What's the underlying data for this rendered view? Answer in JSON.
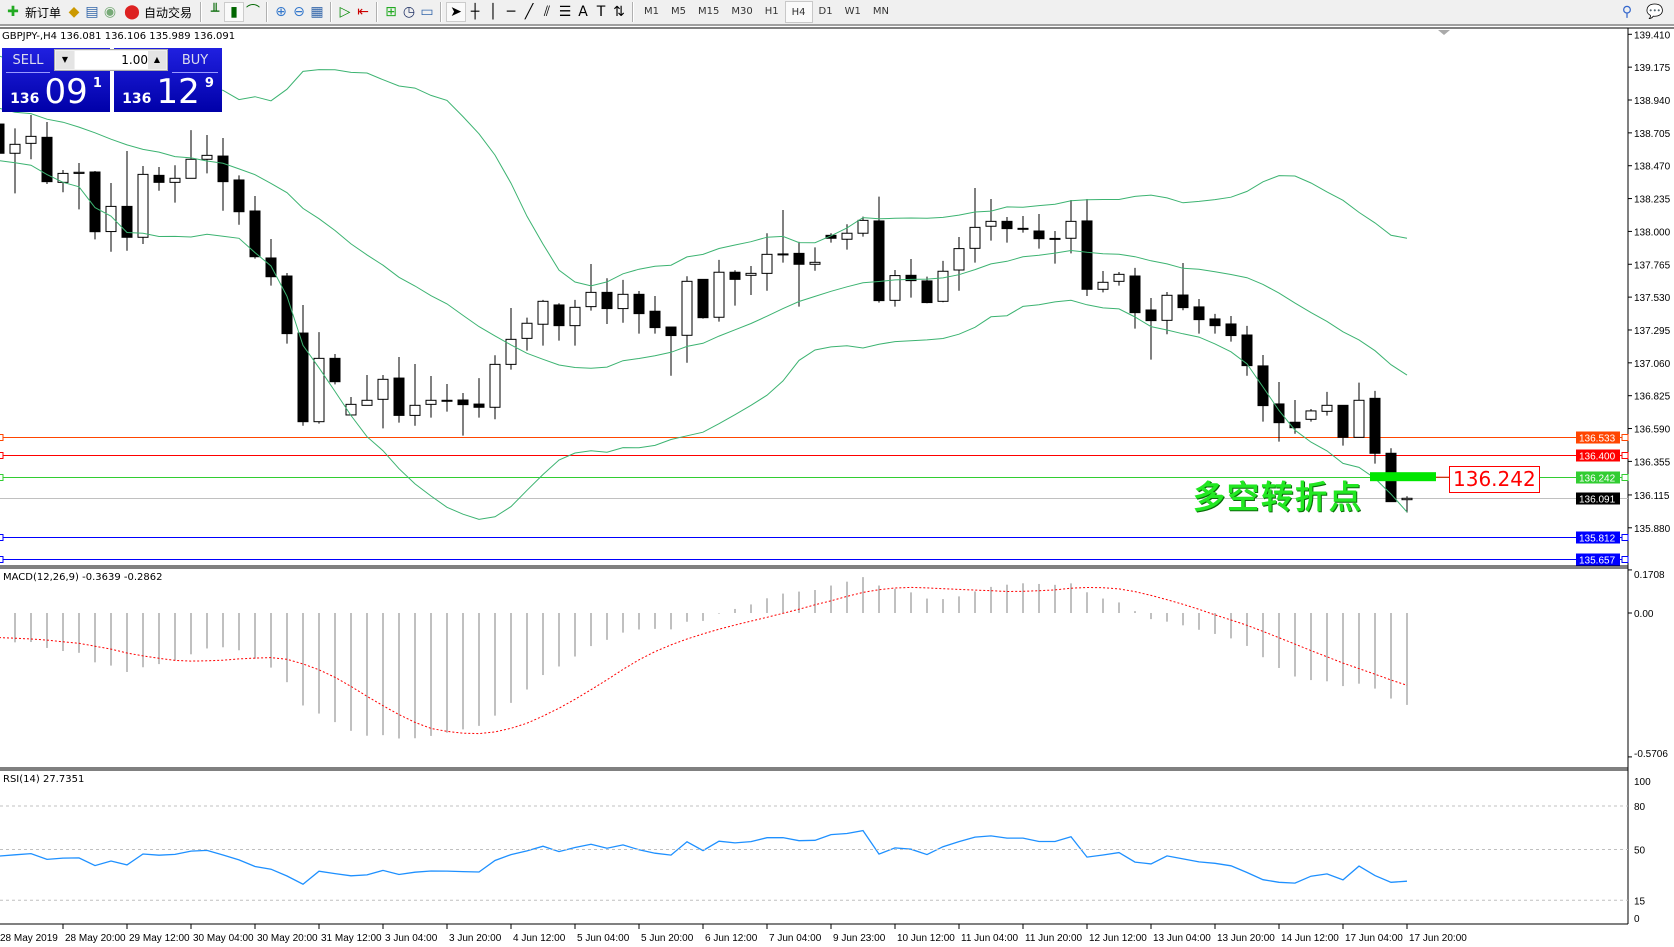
{
  "toolbar": {
    "new_order": "新订单",
    "auto_trading": "自动交易",
    "timeframes": [
      "M1",
      "M5",
      "M15",
      "M30",
      "H1",
      "H4",
      "D1",
      "W1",
      "MN"
    ],
    "selected_timeframe": "H4",
    "icons": [
      "new-order-icon",
      "market-watch-icon",
      "navigator-icon",
      "signals-icon",
      "auto-trading-icon",
      "bar-chart-icon",
      "candlestick-icon",
      "line-chart-icon",
      "zoom-in-icon",
      "zoom-out-icon",
      "tile-windows-icon",
      "autoscroll-icon",
      "chart-shift-icon",
      "indicators-icon",
      "periods-icon",
      "templates-icon",
      "cursor-icon",
      "crosshair-icon",
      "vertical-line-icon",
      "horizontal-line-icon",
      "trendline-icon",
      "equidistant-channel-icon",
      "fibonacci-icon",
      "text-icon",
      "text-label-icon",
      "arrows-icon",
      "search-icon",
      "chat-icon"
    ]
  },
  "chart": {
    "title": "GBPJPY-,H4  136.081 136.106 135.989 136.091",
    "symbol": "GBPJPY-",
    "period": "H4",
    "candles_ohlc": [
      [
        138.768,
        138.785,
        138.535,
        138.559
      ],
      [
        138.559,
        138.737,
        138.272,
        138.623
      ],
      [
        138.63,
        138.833,
        138.516,
        138.68
      ],
      [
        138.673,
        138.783,
        138.339,
        138.356
      ],
      [
        138.351,
        138.439,
        138.28,
        138.415
      ],
      [
        138.415,
        138.489,
        138.158,
        138.423
      ],
      [
        138.425,
        138.432,
        137.943,
        137.998
      ],
      [
        137.999,
        138.346,
        137.855,
        138.179
      ],
      [
        138.179,
        138.575,
        137.862,
        137.958
      ],
      [
        137.958,
        138.468,
        137.91,
        138.408
      ],
      [
        138.401,
        138.461,
        138.291,
        138.351
      ],
      [
        138.351,
        138.473,
        138.206,
        138.38
      ],
      [
        138.38,
        138.725,
        138.38,
        138.516
      ],
      [
        138.516,
        138.69,
        138.415,
        138.544
      ],
      [
        138.539,
        138.668,
        138.148,
        138.356
      ],
      [
        138.368,
        138.401,
        138.048,
        138.141
      ],
      [
        138.146,
        138.253,
        137.805,
        137.819
      ],
      [
        137.81,
        137.946,
        137.612,
        137.676
      ],
      [
        137.681,
        137.703,
        137.197,
        137.269
      ],
      [
        137.273,
        137.474,
        136.61,
        136.639
      ],
      [
        136.639,
        137.28,
        136.625,
        137.092
      ],
      [
        137.092,
        137.123,
        136.906,
        136.925
      ],
      [
        136.687,
        136.816,
        136.687,
        136.763
      ],
      [
        136.756,
        136.973,
        136.756,
        136.792
      ],
      [
        136.799,
        136.973,
        136.591,
        136.942
      ],
      [
        136.951,
        137.102,
        136.632,
        136.684
      ],
      [
        136.684,
        137.052,
        136.61,
        136.756
      ],
      [
        136.763,
        136.966,
        136.668,
        136.792
      ],
      [
        136.792,
        136.909,
        136.711,
        136.79
      ],
      [
        136.794,
        136.844,
        136.539,
        136.761
      ],
      [
        136.765,
        136.951,
        136.668,
        136.742
      ],
      [
        136.742,
        137.114,
        136.656,
        137.049
      ],
      [
        137.049,
        137.452,
        137.011,
        137.228
      ],
      [
        137.235,
        137.383,
        137.147,
        137.343
      ],
      [
        137.336,
        137.51,
        137.183,
        137.5
      ],
      [
        137.474,
        137.486,
        137.219,
        137.326
      ],
      [
        137.326,
        137.51,
        137.183,
        137.457
      ],
      [
        137.462,
        137.767,
        137.433,
        137.564
      ],
      [
        137.564,
        137.665,
        137.338,
        137.448
      ],
      [
        137.448,
        137.653,
        137.347,
        137.55
      ],
      [
        137.55,
        137.574,
        137.269,
        137.412
      ],
      [
        137.429,
        137.538,
        137.269,
        137.312
      ],
      [
        137.316,
        137.316,
        136.968,
        137.255
      ],
      [
        137.257,
        137.679,
        137.061,
        137.643
      ],
      [
        137.657,
        137.657,
        137.376,
        137.383
      ],
      [
        137.386,
        137.796,
        137.355,
        137.708
      ],
      [
        137.708,
        137.722,
        137.469,
        137.657
      ],
      [
        137.686,
        137.753,
        137.545,
        137.7
      ],
      [
        137.7,
        137.987,
        137.576,
        137.836
      ],
      [
        137.836,
        138.153,
        137.777,
        137.839
      ],
      [
        137.843,
        137.925,
        137.462,
        137.765
      ],
      [
        137.765,
        137.886,
        137.719,
        137.779
      ],
      [
        137.972,
        137.987,
        137.92,
        137.951
      ],
      [
        137.944,
        138.051,
        137.87,
        137.987
      ],
      [
        137.987,
        138.106,
        137.963,
        138.079
      ],
      [
        138.075,
        138.249,
        137.491,
        137.505
      ],
      [
        137.507,
        137.724,
        137.462,
        137.684
      ],
      [
        137.686,
        137.803,
        137.526,
        137.648
      ],
      [
        137.646,
        137.677,
        137.486,
        137.491
      ],
      [
        137.5,
        137.789,
        137.493,
        137.715
      ],
      [
        137.724,
        137.96,
        137.576,
        137.877
      ],
      [
        137.879,
        138.311,
        137.777,
        138.029
      ],
      [
        138.037,
        138.232,
        137.934,
        138.072
      ],
      [
        138.072,
        138.103,
        137.92,
        138.02
      ],
      [
        138.022,
        138.11,
        137.991,
        138.02
      ],
      [
        138.003,
        138.125,
        137.877,
        137.948
      ],
      [
        137.95,
        138.003,
        137.77,
        137.948
      ],
      [
        137.951,
        138.225,
        137.843,
        138.072
      ],
      [
        138.075,
        138.232,
        137.538,
        137.586
      ],
      [
        137.586,
        137.717,
        137.564,
        137.636
      ],
      [
        137.643,
        137.71,
        137.612,
        137.693
      ],
      [
        137.681,
        137.739,
        137.305,
        137.419
      ],
      [
        137.438,
        137.524,
        137.083,
        137.362
      ],
      [
        137.364,
        137.567,
        137.264,
        137.543
      ],
      [
        137.545,
        137.774,
        137.436,
        137.455
      ],
      [
        137.46,
        137.517,
        137.269,
        137.369
      ],
      [
        137.374,
        137.41,
        137.269,
        137.326
      ],
      [
        137.338,
        137.395,
        137.212,
        137.255
      ],
      [
        137.259,
        137.324,
        136.968,
        137.04
      ],
      [
        137.038,
        137.116,
        136.639,
        136.754
      ],
      [
        136.766,
        136.923,
        136.496,
        136.632
      ],
      [
        136.635,
        136.794,
        136.553,
        136.596
      ],
      [
        136.656,
        136.73,
        136.639,
        136.716
      ],
      [
        136.713,
        136.852,
        136.682,
        136.756
      ],
      [
        136.756,
        136.756,
        136.468,
        136.527
      ],
      [
        136.527,
        136.918,
        136.527,
        136.792
      ],
      [
        136.806,
        136.859,
        136.339,
        136.413
      ],
      [
        136.413,
        136.449,
        136.067,
        136.067
      ],
      [
        136.081,
        136.106,
        135.989,
        136.091
      ]
    ],
    "price_ticks": [
      "139.410",
      "139.175",
      "138.940",
      "138.705",
      "138.470",
      "138.235",
      "138.000",
      "137.765",
      "137.530",
      "137.295",
      "137.060",
      "136.825",
      "136.590",
      "136.355",
      "136.115",
      "135.880"
    ],
    "time_labels": [
      "28 May 2019",
      "28 May 20:00",
      "29 May 12:00",
      "30 May 04:00",
      "30 May 20:00",
      "31 May 12:00",
      "3 Jun 04:00",
      "3 Jun 20:00",
      "4 Jun 12:00",
      "5 Jun 04:00",
      "5 Jun 20:00",
      "6 Jun 12:00",
      "7 Jun 04:00",
      "9 Jun 23:00",
      "10 Jun 12:00",
      "11 Jun 04:00",
      "11 Jun 20:00",
      "12 Jun 12:00",
      "13 Jun 04:00",
      "13 Jun 20:00",
      "14 Jun 12:00",
      "17 Jun 04:00",
      "17 Jun 20:00"
    ],
    "horizontal_lines": [
      {
        "price": "136.533",
        "color": "#ff4500"
      },
      {
        "price": "136.400",
        "color": "#ff0000"
      },
      {
        "price": "136.242",
        "color": "#32cd32"
      },
      {
        "price": "136.091",
        "color": "#000000",
        "line_color": "#c0c0c0"
      },
      {
        "price": "135.812",
        "color": "#0000ff"
      },
      {
        "price": "135.657",
        "color": "#0000ff"
      }
    ],
    "bollinger_color": "#3cb371",
    "annotation_text": "多空转折点",
    "annotation_price": "136.242",
    "annotation_bar_color": "#00e600"
  },
  "trade_panel": {
    "sell_label": "SELL",
    "buy_label": "BUY",
    "lot": "1.00",
    "sell_prefix": "136",
    "sell_main": "09",
    "sell_sup": "1",
    "buy_prefix": "136",
    "buy_main": "12",
    "buy_sup": "9",
    "color": "#1010d0"
  },
  "macd": {
    "title": "MACD(12,26,9) -0.3639 -0.2862",
    "axis_ticks": [
      "0.1708",
      "0.00",
      "-0.5706"
    ],
    "histogram_color": "#c0c0c0",
    "signal_color": "#ff0000"
  },
  "rsi": {
    "title": "RSI(14) 27.7351",
    "axis_ticks": [
      "100",
      "80",
      "50",
      "15",
      "0"
    ],
    "line_color": "#1e90ff"
  }
}
